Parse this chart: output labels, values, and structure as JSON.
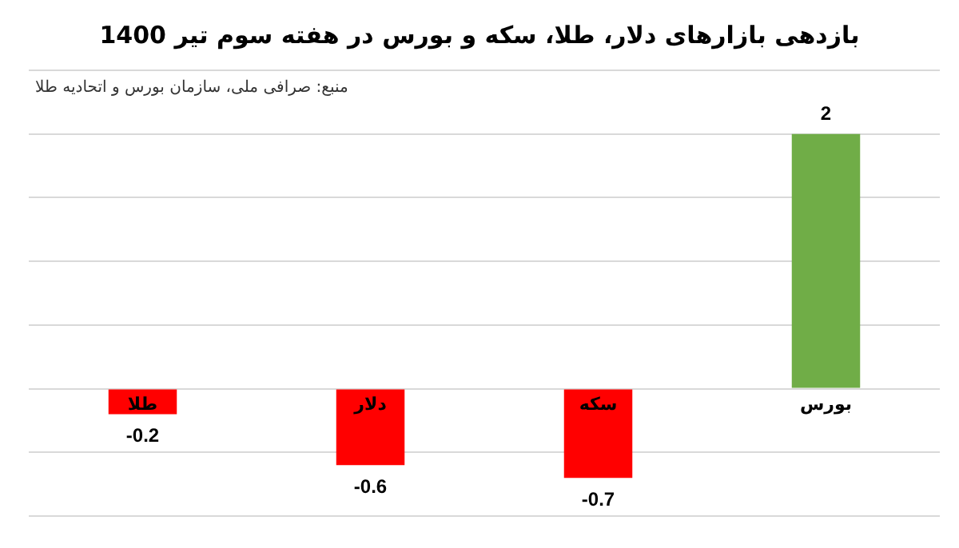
{
  "chart_data": {
    "type": "bar",
    "title": "بازدهی بازارهای دلار، طلا، سکه و بورس در هفته سوم تیر 1400",
    "annotations": [
      "منبع: صرافی ملی، سازمان بورس و اتحادیه طلا"
    ],
    "categories": [
      "طلا",
      "دلار",
      "سکه",
      "بورس"
    ],
    "values": [
      -0.2,
      -0.6,
      -0.7,
      2
    ],
    "colors": [
      "#ff0000",
      "#ff0000",
      "#ff0000",
      "#70ad47"
    ],
    "ylim": [
      -1,
      2.5
    ],
    "yticks": [
      {
        "value": -1,
        "label": null
      },
      {
        "value": -0.5,
        "label": null
      },
      {
        "value": 0,
        "label": null
      },
      {
        "value": 0.5,
        "label": null
      },
      {
        "value": 1,
        "label": null
      },
      {
        "value": 1.5,
        "label": null
      },
      {
        "value": 2,
        "label": null
      },
      {
        "value": 2.5,
        "label": null
      }
    ],
    "grid": "y",
    "data_labels": true
  }
}
